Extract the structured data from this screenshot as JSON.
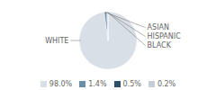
{
  "chart_data": {
    "type": "pie",
    "categories": [
      "WHITE",
      "ASIAN",
      "HISPANIC",
      "BLACK"
    ],
    "values": [
      98.0,
      1.4,
      0.5,
      0.2
    ],
    "value_labels": [
      "98.0%",
      "1.4%",
      "0.5%",
      "0.2%"
    ],
    "colors": [
      "#d9dfe7",
      "#6b8fa8",
      "#2d4f6b",
      "#c5cdd6"
    ],
    "legend": "bottom"
  }
}
